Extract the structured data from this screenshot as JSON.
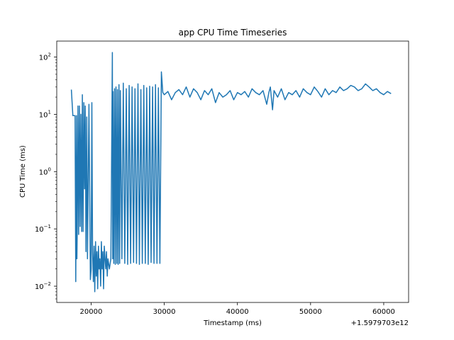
{
  "chart_data": {
    "type": "line",
    "title": "app CPU Time Timeseries",
    "xlabel": "Timestamp (ms)",
    "ylabel": "CPU Time (ms)",
    "x_offset_label": "+1.5979703e12",
    "xlim": [
      15300,
      63400
    ],
    "ylim": [
      0.0052,
      190
    ],
    "yscale": "log",
    "grid": false,
    "legend": "none",
    "line_color": "#1f77b4",
    "x_ticks": [
      {
        "value": 20000,
        "label": "20000"
      },
      {
        "value": 30000,
        "label": "30000"
      },
      {
        "value": 40000,
        "label": "40000"
      },
      {
        "value": 50000,
        "label": "50000"
      },
      {
        "value": 60000,
        "label": "60000"
      }
    ],
    "y_ticks": [
      {
        "value": 0.01,
        "base": "10",
        "exp": "−2"
      },
      {
        "value": 0.1,
        "base": "10",
        "exp": "−1"
      },
      {
        "value": 1,
        "base": "10",
        "exp": "0"
      },
      {
        "value": 10,
        "base": "10",
        "exp": "1"
      },
      {
        "value": 100,
        "base": "10",
        "exp": "2"
      }
    ],
    "series": [
      {
        "x": [
          17300,
          17500,
          17600,
          17800,
          17900,
          18000,
          18050,
          18100,
          18200,
          18300,
          18400,
          18500,
          18600,
          18700,
          18800,
          18900,
          19000,
          19100,
          19200,
          19300,
          19400,
          19500,
          19700,
          19900,
          20000,
          20100,
          20200,
          20300,
          20400,
          20500,
          20600,
          20700,
          20800,
          20900,
          21000,
          21100,
          21200,
          21300,
          21400,
          21500,
          21600,
          21700,
          21800,
          21900,
          22000,
          22100,
          22200,
          22300,
          22500,
          22700,
          22900,
          22950,
          23000,
          23100,
          23200,
          23300,
          23400,
          23500,
          23600,
          23700,
          23800,
          23900,
          24000,
          24200,
          24400,
          24600,
          24800,
          25000,
          25200,
          25400,
          25600,
          25800,
          26000,
          26200,
          26400,
          26600,
          26800,
          27000,
          27200,
          27400,
          27600,
          27800,
          28000,
          28200,
          28400,
          28600,
          28800,
          29000,
          29200,
          29400,
          29600,
          29800,
          30000,
          30500,
          31000,
          31500,
          32000,
          32500,
          33000,
          33500,
          34000,
          34500,
          35000,
          35500,
          36000,
          36500,
          37000,
          37500,
          38000,
          38500,
          39000,
          39500,
          40000,
          40500,
          41000,
          41500,
          42000,
          42500,
          43000,
          43500,
          44000,
          44300,
          44500,
          44800,
          45000,
          45500,
          46000,
          46500,
          47000,
          47500,
          48000,
          48500,
          49000,
          49500,
          50000,
          50500,
          51000,
          51500,
          52000,
          52500,
          53000,
          53500,
          54000,
          54500,
          55000,
          55500,
          56000,
          56500,
          57000,
          57500,
          58000,
          58500,
          59000,
          59500,
          60000,
          60500,
          61000
        ],
        "y": [
          27,
          9.5,
          9.5,
          9.5,
          0.012,
          9.5,
          0.03,
          0.1,
          14,
          0.08,
          14,
          0.11,
          10,
          0.09,
          22,
          0.09,
          16,
          0.5,
          14,
          0.04,
          9,
          0.03,
          15,
          0.013,
          0.02,
          16,
          0.04,
          0.012,
          0.05,
          0.008,
          0.06,
          0.015,
          0.04,
          0.009,
          0.05,
          0.02,
          0.03,
          0.01,
          0.06,
          0.02,
          0.04,
          0.009,
          0.05,
          0.03,
          0.02,
          0.04,
          0.015,
          0.03,
          0.02,
          0.03,
          120,
          0.03,
          25,
          0.025,
          28,
          0.024,
          30,
          0.025,
          27,
          0.024,
          33,
          0.025,
          26,
          0.03,
          35,
          0.025,
          28,
          0.024,
          32,
          0.025,
          30,
          0.026,
          28,
          0.025,
          34,
          0.024,
          27,
          0.025,
          32,
          0.025,
          29,
          0.024,
          31,
          0.026,
          30,
          0.025,
          33,
          0.025,
          29,
          0.025,
          55,
          24,
          22,
          25,
          18,
          24,
          27,
          22,
          30,
          20,
          28,
          24,
          18,
          26,
          22,
          28,
          16,
          24,
          20,
          22,
          26,
          18,
          24,
          22,
          25,
          20,
          28,
          24,
          22,
          26,
          15,
          24,
          30,
          12,
          26,
          20,
          28,
          18,
          24,
          22,
          26,
          20,
          28,
          24,
          22,
          30,
          25,
          20,
          28,
          22,
          26,
          24,
          30,
          26,
          28,
          32,
          30,
          26,
          28,
          34,
          30,
          26,
          28,
          24,
          22,
          25,
          23
        ]
      }
    ]
  }
}
